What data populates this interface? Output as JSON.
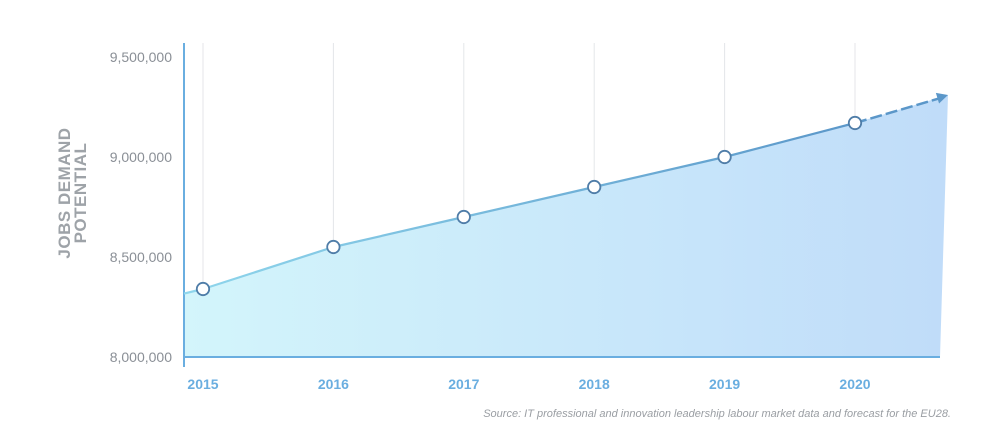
{
  "chart_data": {
    "type": "area",
    "title": "",
    "ylabel_lines": [
      "JOBS DEMAND",
      "POTENTIAL"
    ],
    "xlabel": "",
    "categories": [
      "2015",
      "2016",
      "2017",
      "2018",
      "2019",
      "2020"
    ],
    "values": [
      8340000,
      8550000,
      8700000,
      8850000,
      9000000,
      9170000
    ],
    "forecast_end_value": 9310000,
    "ylim": [
      8000000,
      9500000
    ],
    "yticks": [
      8000000,
      8500000,
      9000000,
      9500000
    ],
    "ytick_labels": [
      "8,000,000",
      "8,500,000",
      "9,000,000",
      "9,500,000"
    ],
    "grid": "vertical",
    "colors": {
      "line_start": "#8fd6ec",
      "line_end": "#5b97c9",
      "fill_start": "#d3f5fb",
      "fill_end": "#c0dcf9",
      "axis": "#6aaee0",
      "marker_stroke": "#4f7da8"
    }
  },
  "source_note": "Source: IT professional and innovation leadership labour market data and forecast for the EU28."
}
